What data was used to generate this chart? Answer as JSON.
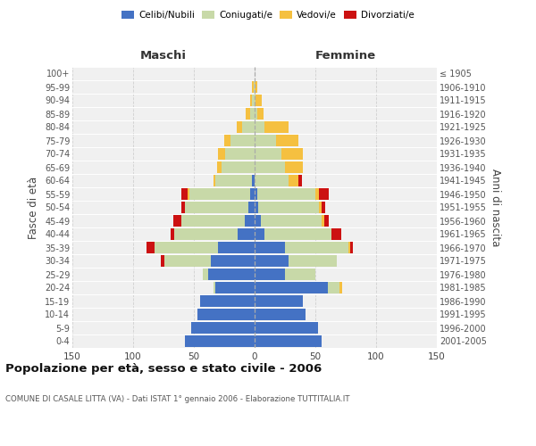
{
  "age_groups": [
    "0-4",
    "5-9",
    "10-14",
    "15-19",
    "20-24",
    "25-29",
    "30-34",
    "35-39",
    "40-44",
    "45-49",
    "50-54",
    "55-59",
    "60-64",
    "65-69",
    "70-74",
    "75-79",
    "80-84",
    "85-89",
    "90-94",
    "95-99",
    "100+"
  ],
  "birth_years": [
    "2001-2005",
    "1996-2000",
    "1991-1995",
    "1986-1990",
    "1981-1985",
    "1976-1980",
    "1971-1975",
    "1966-1970",
    "1961-1965",
    "1956-1960",
    "1951-1955",
    "1946-1950",
    "1941-1945",
    "1936-1940",
    "1931-1935",
    "1926-1930",
    "1921-1925",
    "1916-1920",
    "1911-1915",
    "1906-1910",
    "≤ 1905"
  ],
  "maschi": {
    "celibi": [
      57,
      52,
      47,
      45,
      32,
      38,
      36,
      30,
      14,
      8,
      5,
      4,
      2,
      0,
      0,
      0,
      0,
      0,
      0,
      0,
      0
    ],
    "coniugati": [
      0,
      0,
      0,
      0,
      2,
      5,
      38,
      52,
      52,
      52,
      52,
      50,
      30,
      27,
      24,
      20,
      10,
      4,
      2,
      1,
      0
    ],
    "vedovi": [
      0,
      0,
      0,
      0,
      0,
      0,
      0,
      0,
      0,
      0,
      0,
      1,
      2,
      4,
      6,
      5,
      5,
      3,
      2,
      1,
      0
    ],
    "divorziati": [
      0,
      0,
      0,
      0,
      0,
      0,
      3,
      7,
      3,
      7,
      3,
      5,
      0,
      0,
      0,
      0,
      0,
      0,
      0,
      0,
      0
    ]
  },
  "femmine": {
    "nubili": [
      55,
      52,
      42,
      40,
      60,
      25,
      28,
      25,
      8,
      5,
      3,
      2,
      0,
      0,
      0,
      0,
      0,
      0,
      0,
      0,
      0
    ],
    "coniugate": [
      0,
      0,
      0,
      0,
      10,
      25,
      40,
      52,
      55,
      50,
      50,
      48,
      28,
      25,
      22,
      18,
      8,
      2,
      1,
      0,
      0
    ],
    "vedove": [
      0,
      0,
      0,
      0,
      2,
      0,
      0,
      2,
      0,
      2,
      2,
      3,
      8,
      15,
      18,
      18,
      20,
      5,
      5,
      2,
      0
    ],
    "divorziate": [
      0,
      0,
      0,
      0,
      0,
      0,
      0,
      2,
      8,
      4,
      3,
      8,
      3,
      0,
      0,
      0,
      0,
      0,
      0,
      0,
      0
    ]
  },
  "colors": {
    "celibi": "#4472c4",
    "coniugati": "#c8d9a8",
    "vedovi": "#f5c040",
    "divorziati": "#cc1111"
  },
  "title": "Popolazione per età, sesso e stato civile - 2006",
  "subtitle": "COMUNE DI CASALE LITTA (VA) - Dati ISTAT 1° gennaio 2006 - Elaborazione TUTTITALIA.IT",
  "ylabel_left": "Fasce di età",
  "ylabel_right": "Anni di nascita",
  "label_maschi": "Maschi",
  "label_femmine": "Femmine",
  "xlim": 150,
  "bg_color": "#f0f0f0",
  "grid_color": "#d0d0d0"
}
